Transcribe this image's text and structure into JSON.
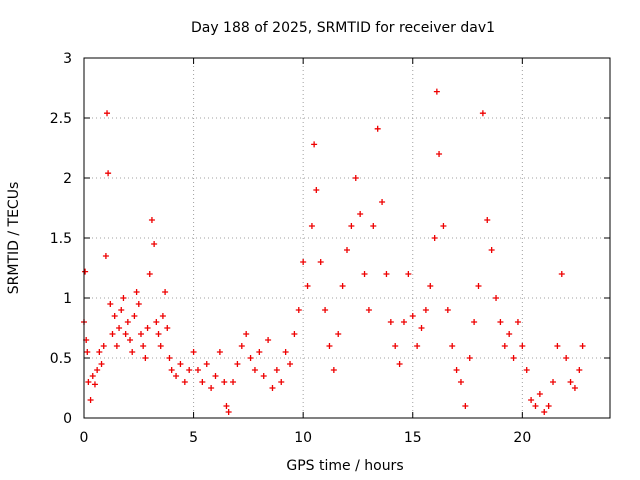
{
  "chart_data": {
    "type": "scatter",
    "title": "Day 188 of 2025, SRMTID for receiver dav1",
    "xlabel": "GPS time / hours",
    "ylabel": "SRMTID / TECUs",
    "xlim": [
      0,
      24
    ],
    "ylim": [
      0,
      3
    ],
    "xticks": [
      "0",
      "5",
      "10",
      "15",
      "20"
    ],
    "yticks": [
      "0",
      "0.5",
      "1",
      "1.5",
      "2",
      "2.5",
      "3"
    ],
    "grid": true,
    "marker": "+",
    "color": "#ee0000",
    "series": [
      {
        "name": "SRMTID",
        "x": [
          0.0,
          0.05,
          0.1,
          0.15,
          0.2,
          0.3,
          0.4,
          0.5,
          0.6,
          0.7,
          0.8,
          0.9,
          1.0,
          1.05,
          1.1,
          1.2,
          1.3,
          1.4,
          1.5,
          1.6,
          1.7,
          1.8,
          1.9,
          2.0,
          2.1,
          2.2,
          2.3,
          2.4,
          2.5,
          2.6,
          2.7,
          2.8,
          2.9,
          3.0,
          3.1,
          3.2,
          3.3,
          3.4,
          3.5,
          3.6,
          3.7,
          3.8,
          3.9,
          4.0,
          4.2,
          4.4,
          4.6,
          4.8,
          5.0,
          5.2,
          5.4,
          5.6,
          5.8,
          6.0,
          6.2,
          6.4,
          6.5,
          6.6,
          6.8,
          7.0,
          7.2,
          7.4,
          7.6,
          7.8,
          8.0,
          8.2,
          8.4,
          8.6,
          8.8,
          9.0,
          9.2,
          9.4,
          9.6,
          9.8,
          10.0,
          10.2,
          10.4,
          10.5,
          10.6,
          10.8,
          11.0,
          11.2,
          11.4,
          11.6,
          11.8,
          12.0,
          12.2,
          12.4,
          12.6,
          12.8,
          13.0,
          13.2,
          13.4,
          13.6,
          13.8,
          14.0,
          14.2,
          14.4,
          14.6,
          14.8,
          15.0,
          15.2,
          15.4,
          15.6,
          15.8,
          16.0,
          16.1,
          16.2,
          16.4,
          16.6,
          16.8,
          17.0,
          17.2,
          17.4,
          17.6,
          17.8,
          18.0,
          18.2,
          18.4,
          18.6,
          18.8,
          19.0,
          19.2,
          19.4,
          19.6,
          19.8,
          20.0,
          20.2,
          20.4,
          20.6,
          20.8,
          21.0,
          21.2,
          21.4,
          21.6,
          21.8,
          22.0,
          22.2,
          22.4,
          22.6,
          22.75
        ],
        "y": [
          0.8,
          1.22,
          0.65,
          0.55,
          0.3,
          0.15,
          0.35,
          0.28,
          0.4,
          0.55,
          0.45,
          0.6,
          1.35,
          2.54,
          2.04,
          0.95,
          0.7,
          0.85,
          0.6,
          0.75,
          0.9,
          1.0,
          0.7,
          0.8,
          0.65,
          0.55,
          0.85,
          1.05,
          0.95,
          0.7,
          0.6,
          0.5,
          0.75,
          1.2,
          1.65,
          1.45,
          0.8,
          0.7,
          0.6,
          0.85,
          1.05,
          0.75,
          0.5,
          0.4,
          0.35,
          0.45,
          0.3,
          0.4,
          0.55,
          0.4,
          0.3,
          0.45,
          0.25,
          0.35,
          0.55,
          0.3,
          0.1,
          0.05,
          0.3,
          0.45,
          0.6,
          0.7,
          0.5,
          0.4,
          0.55,
          0.35,
          0.65,
          0.25,
          0.4,
          0.3,
          0.55,
          0.45,
          0.7,
          0.9,
          1.3,
          1.1,
          1.6,
          2.28,
          1.9,
          1.3,
          0.9,
          0.6,
          0.4,
          0.7,
          1.1,
          1.4,
          1.6,
          2.0,
          1.7,
          1.2,
          0.9,
          1.6,
          2.41,
          1.8,
          1.2,
          0.8,
          0.6,
          0.45,
          0.8,
          1.2,
          0.85,
          0.6,
          0.75,
          0.9,
          1.1,
          1.5,
          2.72,
          2.2,
          1.6,
          0.9,
          0.6,
          0.4,
          0.3,
          0.1,
          0.5,
          0.8,
          1.1,
          2.54,
          1.65,
          1.4,
          1.0,
          0.8,
          0.6,
          0.7,
          0.5,
          0.8,
          0.6,
          0.4,
          0.15,
          0.1,
          0.2,
          0.05,
          0.1,
          0.3,
          0.6,
          1.2,
          0.5,
          0.3,
          0.25,
          0.4,
          0.6
        ]
      }
    ]
  }
}
